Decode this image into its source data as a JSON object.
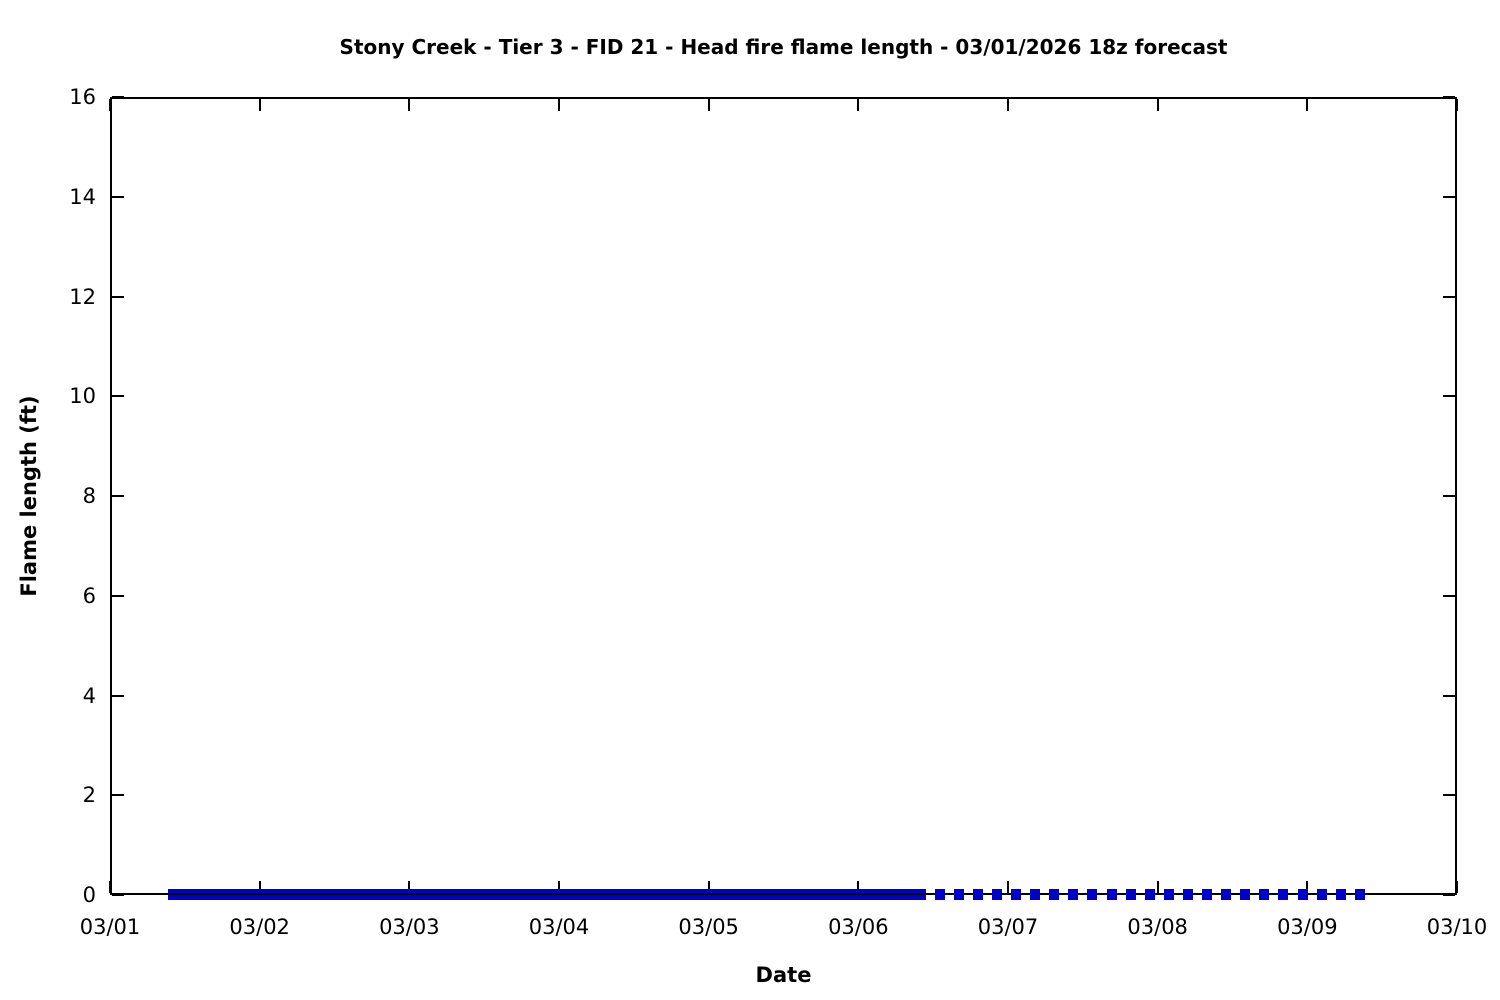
{
  "chart_data": {
    "type": "line",
    "title": "Stony Creek - Tier 3 - FID 21 - Head fire flame length - 03/01/2026 18z forecast",
    "xlabel": "Date",
    "ylabel": "Flame length (ft)",
    "x_tick_labels": [
      "03/01",
      "03/02",
      "03/03",
      "03/04",
      "03/05",
      "03/06",
      "03/07",
      "03/08",
      "03/09",
      "03/10"
    ],
    "xlim_days": [
      0,
      9
    ],
    "y_ticks": [
      0,
      2,
      4,
      6,
      8,
      10,
      12,
      14,
      16
    ],
    "ylim": [
      0,
      16
    ],
    "grid": false,
    "legend": "none",
    "tick_style": "inward-mirrored",
    "axis_color": "#000000",
    "line_color": "#0000CD",
    "series": [
      {
        "name": "head-fire-flame-length-solid",
        "style": "solid",
        "value_ft": 0,
        "x_start_day": 0.39,
        "x_end_day": 5.45
      },
      {
        "name": "head-fire-flame-length-dashed",
        "style": "dashed",
        "value_ft": 0,
        "x_start_day": 5.51,
        "x_end_day": 8.45
      }
    ]
  }
}
